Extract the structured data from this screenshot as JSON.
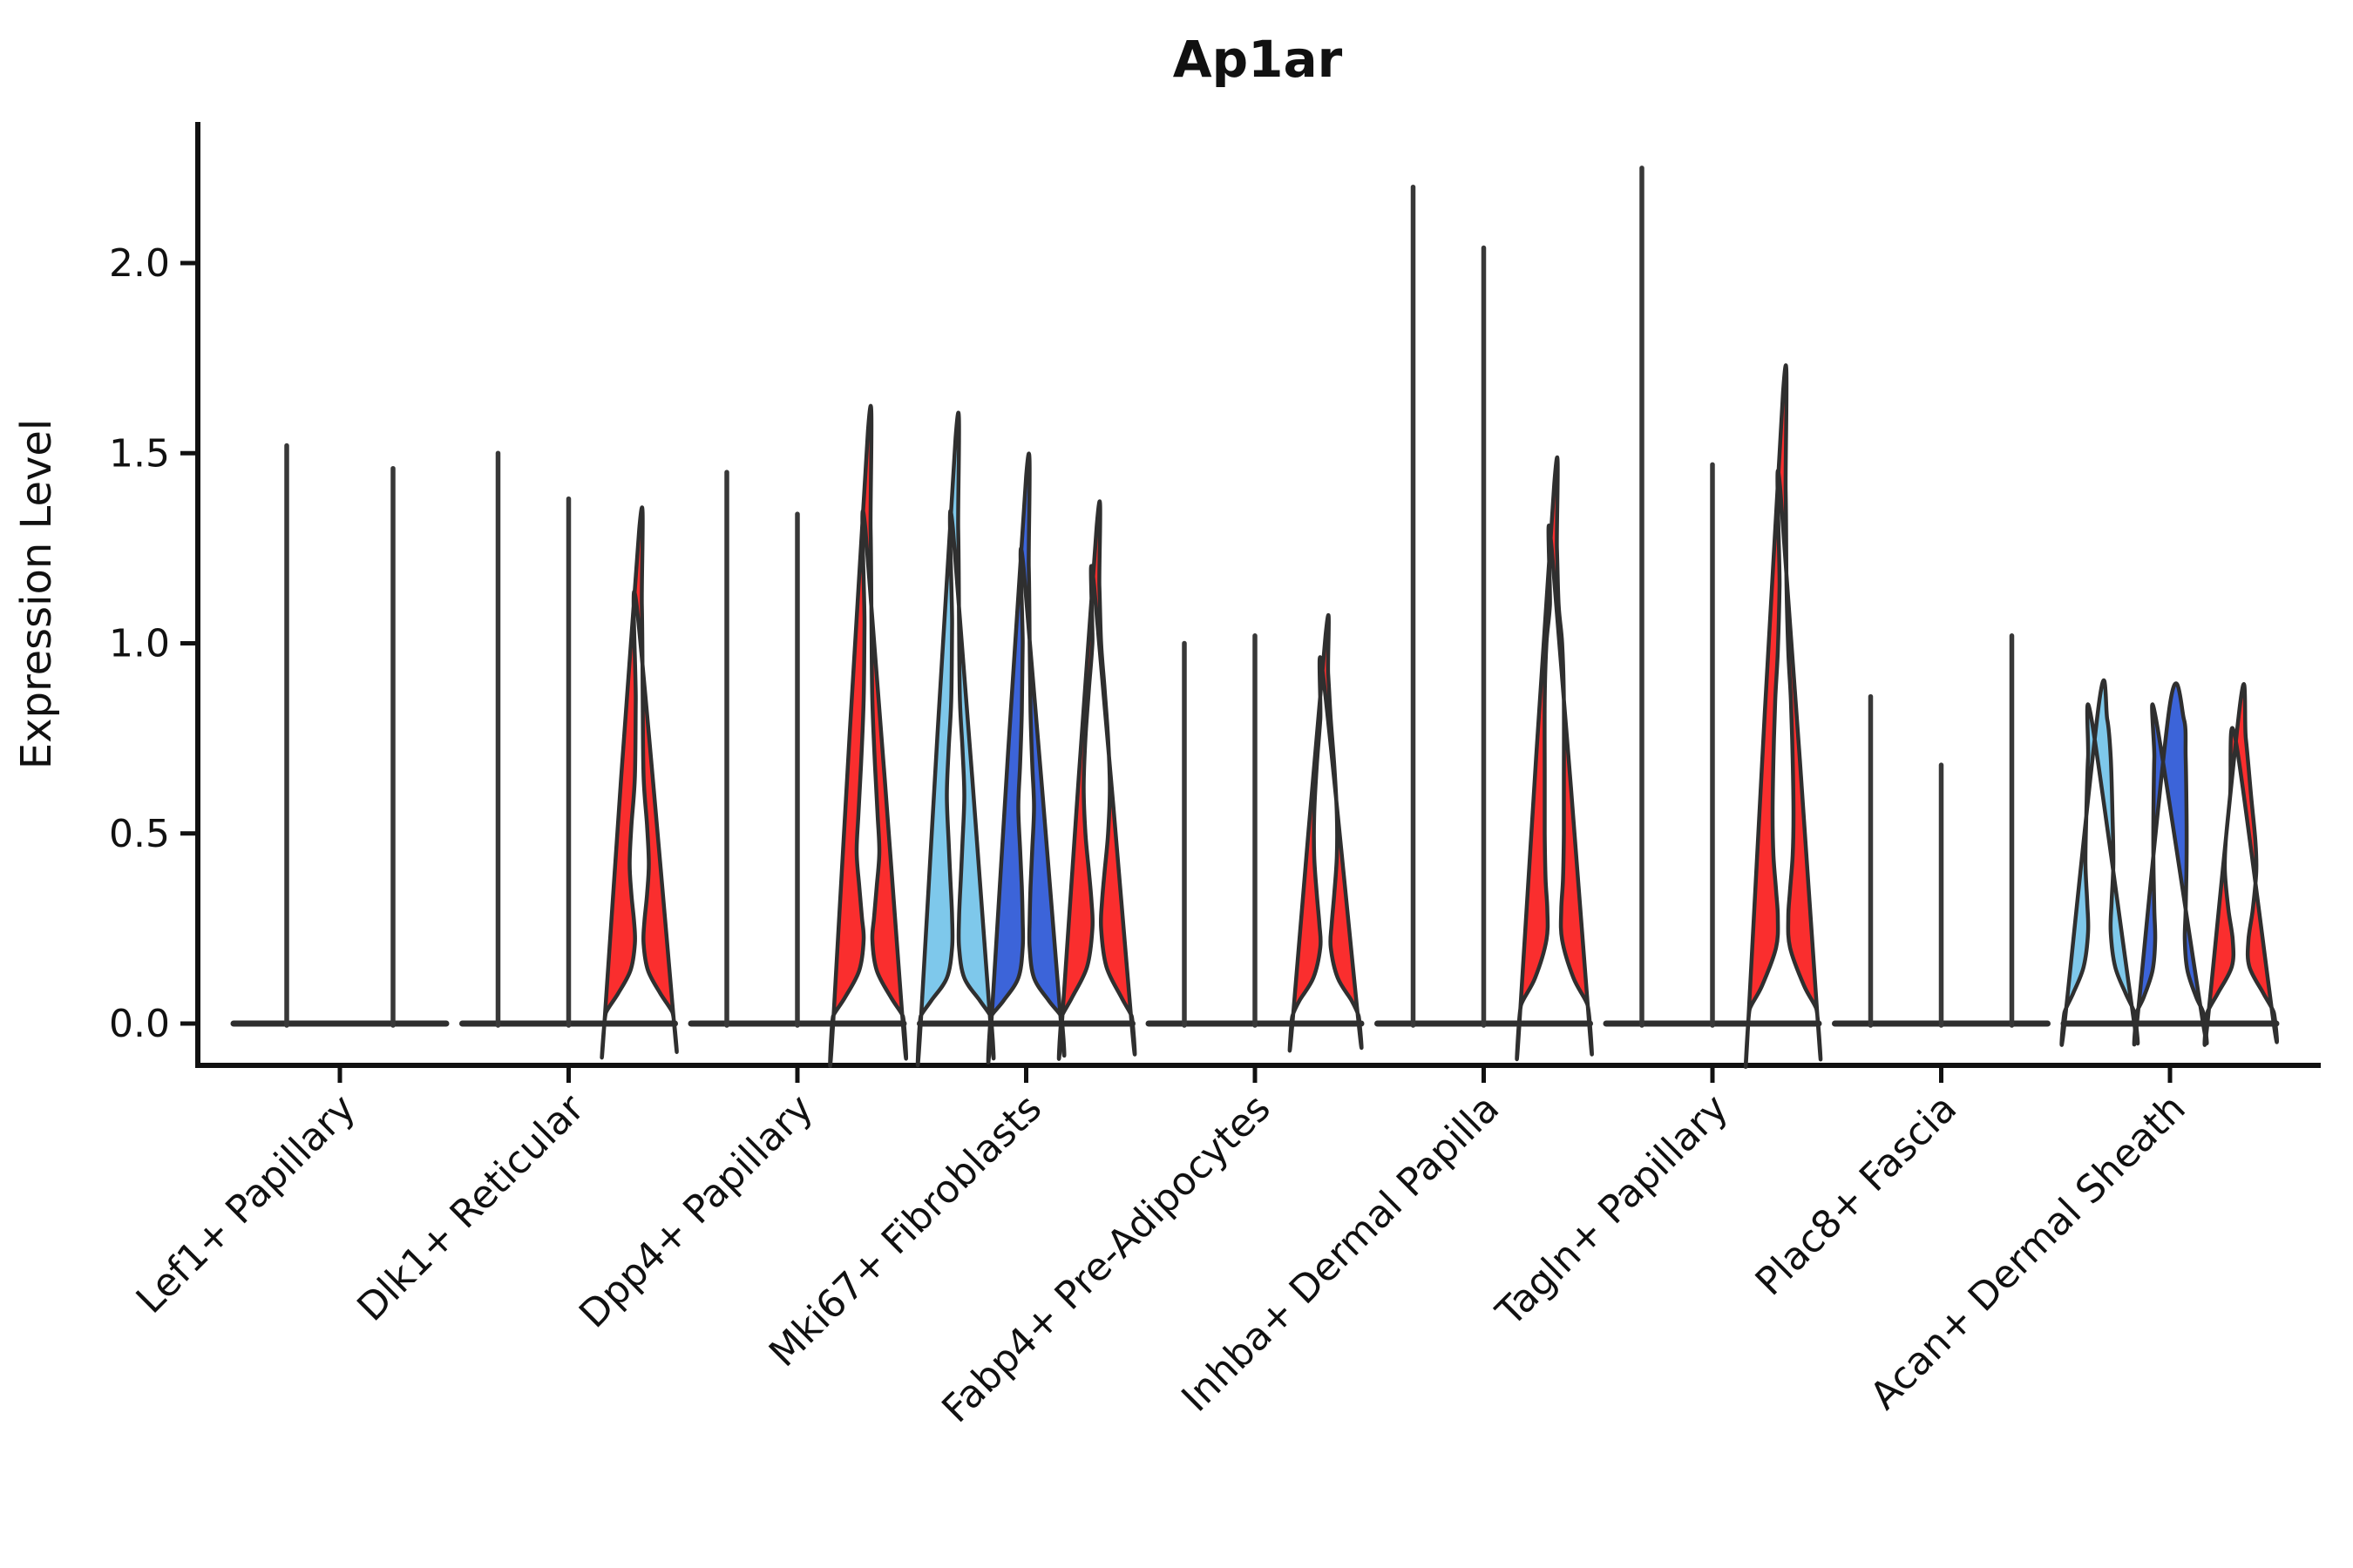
{
  "title": "Ap1ar",
  "ylabel": "Expression Level",
  "style": {
    "background": "#ffffff",
    "axis_color": "#111111",
    "outline_color": "#2f2f2f",
    "spike_color": "#383838",
    "baseline_color": "#2e2e2e"
  },
  "chart_data": {
    "type": "violin",
    "title": "Ap1ar",
    "xlabel": "",
    "ylabel": "Expression Level",
    "ylim": [
      -0.11,
      2.37
    ],
    "yticks": [
      "0.0",
      "0.5",
      "1.0",
      "1.5",
      "2.0"
    ],
    "ytick_values": [
      0,
      0.5,
      1.0,
      1.5,
      2.0
    ],
    "x_tick_rotation_deg": 45,
    "legend": "none",
    "grid": "off",
    "series_colors": {
      "light_blue": "#7EC8EB",
      "dark_blue": "#3C64D9",
      "red": "#FA2E2E"
    },
    "categories": [
      "Lef1+ Papillary",
      "Dlk1+ Reticular",
      "Dpp4+ Papillary",
      "Mki67+ Fibroblasts",
      "Fabp4+ Pre-Adipocytes",
      "Inhba+ Dermal Papilla",
      "Tagln+ Papillary",
      "Plac8+ Fascia",
      "Acan+ Dermal Sheath"
    ],
    "groups": [
      {
        "label": "Lef1+ Papillary",
        "violins": [
          {
            "series": "light_blue",
            "shape": "spike",
            "max_expression": 1.52
          },
          {
            "series": "dark_blue",
            "shape": "spike",
            "max_expression": 1.46
          }
        ]
      },
      {
        "label": "Dlk1+ Reticular",
        "violins": [
          {
            "series": "light_blue",
            "shape": "spike",
            "max_expression": 1.5
          },
          {
            "series": "dark_blue",
            "shape": "spike",
            "max_expression": 1.38
          },
          {
            "series": "red",
            "shape": "violin",
            "max_expression": 1.3,
            "profile": [
              [
                1.3,
                2
              ],
              [
                1.1,
                3
              ],
              [
                0.85,
                4
              ],
              [
                0.65,
                5
              ],
              [
                0.52,
                9
              ],
              [
                0.42,
                11
              ],
              [
                0.34,
                9
              ],
              [
                0.27,
                6
              ],
              [
                0.21,
                5
              ],
              [
                0.14,
                10
              ],
              [
                0.08,
                24
              ],
              [
                0.03,
                38
              ],
              [
                0,
                40
              ]
            ]
          }
        ]
      },
      {
        "label": "Dpp4+ Papillary",
        "violins": [
          {
            "series": "light_blue",
            "shape": "spike",
            "max_expression": 1.45
          },
          {
            "series": "dark_blue",
            "shape": "spike",
            "max_expression": 1.34
          },
          {
            "series": "red",
            "shape": "violin",
            "max_expression": 1.56,
            "profile": [
              [
                1.56,
                2
              ],
              [
                1.3,
                3
              ],
              [
                1.05,
                4
              ],
              [
                0.85,
                5
              ],
              [
                0.68,
                8
              ],
              [
                0.55,
                11
              ],
              [
                0.45,
                13
              ],
              [
                0.36,
                10
              ],
              [
                0.28,
                7
              ],
              [
                0.22,
                5
              ],
              [
                0.14,
                10
              ],
              [
                0.07,
                26
              ],
              [
                0.02,
                40
              ],
              [
                0,
                40
              ]
            ]
          }
        ]
      },
      {
        "label": "Mki67+ Fibroblasts",
        "violins": [
          {
            "series": "light_blue",
            "shape": "violin",
            "max_expression": 1.54,
            "profile": [
              [
                1.54,
                2
              ],
              [
                1.3,
                3
              ],
              [
                1.05,
                4
              ],
              [
                0.85,
                5
              ],
              [
                0.72,
                8
              ],
              [
                0.6,
                10
              ],
              [
                0.48,
                8
              ],
              [
                0.38,
                6
              ],
              [
                0.28,
                4
              ],
              [
                0.2,
                4
              ],
              [
                0.12,
                10
              ],
              [
                0.06,
                28
              ],
              [
                0.02,
                40
              ],
              [
                0,
                40
              ]
            ]
          },
          {
            "series": "dark_blue",
            "shape": "violin",
            "max_expression": 1.44,
            "profile": [
              [
                1.44,
                2
              ],
              [
                1.2,
                3
              ],
              [
                1.0,
                4
              ],
              [
                0.82,
                5
              ],
              [
                0.68,
                7
              ],
              [
                0.57,
                9
              ],
              [
                0.46,
                7
              ],
              [
                0.36,
                5
              ],
              [
                0.27,
                4
              ],
              [
                0.2,
                4
              ],
              [
                0.12,
                9
              ],
              [
                0.06,
                26
              ],
              [
                0.02,
                40
              ],
              [
                0,
                40
              ]
            ]
          },
          {
            "series": "red",
            "shape": "violin",
            "max_expression": 1.31,
            "profile": [
              [
                1.31,
                2
              ],
              [
                1.15,
                3
              ],
              [
                1.0,
                5
              ],
              [
                0.88,
                9
              ],
              [
                0.75,
                13
              ],
              [
                0.62,
                15
              ],
              [
                0.5,
                13
              ],
              [
                0.4,
                9
              ],
              [
                0.32,
                6
              ],
              [
                0.25,
                5
              ],
              [
                0.15,
                11
              ],
              [
                0.07,
                28
              ],
              [
                0.02,
                40
              ],
              [
                0,
                40
              ]
            ]
          }
        ]
      },
      {
        "label": "Fabp4+ Pre-Adipocytes",
        "violins": [
          {
            "series": "light_blue",
            "shape": "spike",
            "max_expression": 1.0
          },
          {
            "series": "dark_blue",
            "shape": "spike",
            "max_expression": 1.02
          },
          {
            "series": "red",
            "shape": "violin",
            "max_expression": 1.02,
            "profile": [
              [
                1.02,
                2
              ],
              [
                0.92,
                3
              ],
              [
                0.8,
                6
              ],
              [
                0.68,
                10
              ],
              [
                0.55,
                13
              ],
              [
                0.44,
                13
              ],
              [
                0.34,
                10
              ],
              [
                0.26,
                7
              ],
              [
                0.2,
                6
              ],
              [
                0.12,
                14
              ],
              [
                0.06,
                30
              ],
              [
                0.02,
                38
              ],
              [
                0,
                38
              ]
            ]
          }
        ]
      },
      {
        "label": "Inhba+ Dermal Papilla",
        "violins": [
          {
            "series": "light_blue",
            "shape": "spike",
            "max_expression": 2.2
          },
          {
            "series": "dark_blue",
            "shape": "spike",
            "max_expression": 2.04
          },
          {
            "series": "red",
            "shape": "violin",
            "max_expression": 1.42,
            "profile": [
              [
                1.42,
                2
              ],
              [
                1.25,
                3
              ],
              [
                1.1,
                5
              ],
              [
                1.0,
                9
              ],
              [
                0.85,
                11
              ],
              [
                0.65,
                11
              ],
              [
                0.5,
                11
              ],
              [
                0.38,
                10
              ],
              [
                0.3,
                8
              ],
              [
                0.22,
                9
              ],
              [
                0.12,
                22
              ],
              [
                0.05,
                38
              ],
              [
                0,
                40
              ]
            ]
          }
        ]
      },
      {
        "label": "Tagln+ Papillary",
        "violins": [
          {
            "series": "light_blue",
            "shape": "spike",
            "max_expression": 2.25
          },
          {
            "series": "dark_blue",
            "shape": "spike",
            "max_expression": 1.47
          },
          {
            "series": "red",
            "shape": "violin",
            "max_expression": 1.66,
            "profile": [
              [
                1.66,
                2
              ],
              [
                1.4,
                3
              ],
              [
                1.15,
                4
              ],
              [
                0.98,
                6
              ],
              [
                0.85,
                9
              ],
              [
                0.7,
                11
              ],
              [
                0.55,
                12
              ],
              [
                0.44,
                11
              ],
              [
                0.35,
                8
              ],
              [
                0.28,
                6
              ],
              [
                0.2,
                8
              ],
              [
                0.1,
                24
              ],
              [
                0.04,
                38
              ],
              [
                0,
                40
              ]
            ]
          }
        ]
      },
      {
        "label": "Plac8+ Fascia",
        "violins": [
          {
            "series": "light_blue",
            "shape": "spike",
            "max_expression": 0.86
          },
          {
            "series": "dark_blue",
            "shape": "spike",
            "max_expression": 0.68
          },
          {
            "series": "red",
            "shape": "spike",
            "max_expression": 1.02
          }
        ]
      },
      {
        "label": "Acan+ Dermal Sheath",
        "violins": [
          {
            "series": "light_blue",
            "shape": "violin",
            "max_expression": 0.85,
            "profile": [
              [
                0.85,
                5
              ],
              [
                0.8,
                9
              ],
              [
                0.7,
                13
              ],
              [
                0.55,
                15
              ],
              [
                0.42,
                16
              ],
              [
                0.32,
                14
              ],
              [
                0.24,
                13
              ],
              [
                0.15,
                18
              ],
              [
                0.08,
                30
              ],
              [
                0.03,
                40
              ],
              [
                0,
                40
              ]
            ]
          },
          {
            "series": "dark_blue",
            "shape": "violin",
            "max_expression": 0.84,
            "profile": [
              [
                0.84,
                13
              ],
              [
                0.8,
                16
              ],
              [
                0.7,
                18
              ],
              [
                0.55,
                19
              ],
              [
                0.42,
                19
              ],
              [
                0.3,
                18
              ],
              [
                0.22,
                17
              ],
              [
                0.14,
                20
              ],
              [
                0.07,
                30
              ],
              [
                0.03,
                38
              ],
              [
                0,
                38
              ]
            ]
          },
          {
            "series": "red",
            "shape": "violin",
            "max_expression": 0.85,
            "profile": [
              [
                0.85,
                3
              ],
              [
                0.75,
                6
              ],
              [
                0.6,
                12
              ],
              [
                0.48,
                17
              ],
              [
                0.4,
                18
              ],
              [
                0.3,
                14
              ],
              [
                0.22,
                9
              ],
              [
                0.15,
                10
              ],
              [
                0.08,
                26
              ],
              [
                0.03,
                38
              ],
              [
                0,
                38
              ]
            ]
          }
        ]
      }
    ]
  }
}
